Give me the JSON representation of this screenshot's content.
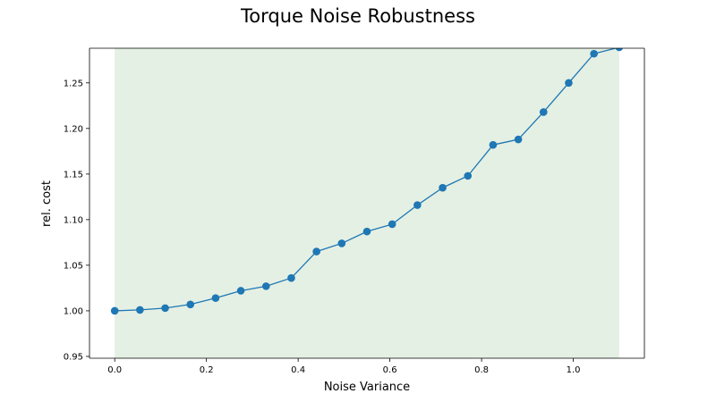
{
  "chart_data": {
    "type": "line",
    "title": "Torque Noise Robustness",
    "xlabel": "Noise Variance",
    "ylabel": "rel. cost",
    "xlim": [
      -0.055,
      1.155
    ],
    "ylim": [
      0.948,
      1.288
    ],
    "xticks": [
      0.0,
      0.2,
      0.4,
      0.6,
      0.8,
      1.0
    ],
    "xtick_labels": [
      "0.0",
      "0.2",
      "0.4",
      "0.6",
      "0.8",
      "1.0"
    ],
    "yticks": [
      0.95,
      1.0,
      1.05,
      1.1,
      1.15,
      1.2,
      1.25
    ],
    "ytick_labels": [
      "0.95",
      "1.00",
      "1.05",
      "1.10",
      "1.15",
      "1.20",
      "1.25"
    ],
    "grid": false,
    "shaded_region": {
      "x_start": 0.0,
      "x_end": 1.1,
      "color": "#e4f0e4"
    },
    "series": [
      {
        "color": "#1f77b4",
        "marker": "circle",
        "x": [
          0.0,
          0.055,
          0.11,
          0.165,
          0.22,
          0.275,
          0.33,
          0.385,
          0.44,
          0.495,
          0.55,
          0.605,
          0.66,
          0.715,
          0.77,
          0.825,
          0.88,
          0.935,
          0.99,
          1.045,
          1.1
        ],
        "y": [
          1.0,
          1.001,
          1.003,
          1.007,
          1.014,
          1.022,
          1.027,
          1.036,
          1.065,
          1.074,
          1.087,
          1.095,
          1.116,
          1.135,
          1.148,
          1.182,
          1.188,
          1.218,
          1.25,
          1.282,
          1.289
        ]
      }
    ]
  }
}
